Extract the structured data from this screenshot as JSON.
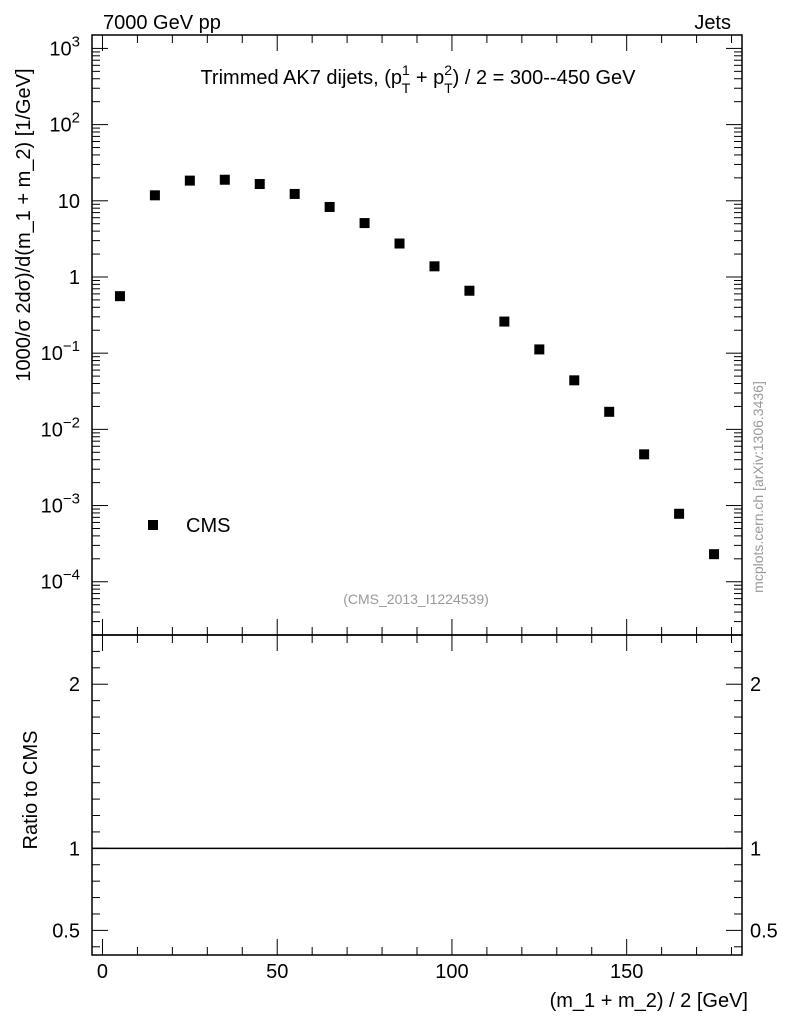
{
  "header": {
    "left": "7000 GeV pp",
    "right": "Jets"
  },
  "side_label": "mcplots.cern.ch [arXiv:1306.3436]",
  "analysis_label": "(CMS_2013_I1224539)",
  "chart_data": [
    {
      "type": "scatter",
      "title_parts": {
        "prefix": "Trimmed AK7 dijets, (p",
        "sup1": "1",
        "sub1": "T",
        "mid": " + p",
        "sup2": "2",
        "sub2": "T",
        "suffix": ") / 2 = 300--450 GeV"
      },
      "ylabel": "1000/σ  2dσ)/d(m_1 + m_2) [1/GeV]",
      "yscale": "log",
      "ylim": [
        2e-05,
        1500
      ],
      "xlim": [
        -3,
        183
      ],
      "y_ticks": [
        {
          "value": 1000,
          "base": "10",
          "exp": "3"
        },
        {
          "value": 100,
          "base": "10",
          "exp": "2"
        },
        {
          "value": 10,
          "base": "10",
          "exp": ""
        },
        {
          "value": 1,
          "base": "1",
          "exp": ""
        },
        {
          "value": 0.1,
          "base": "10",
          "exp": "−1"
        },
        {
          "value": 0.01,
          "base": "10",
          "exp": "−2"
        },
        {
          "value": 0.001,
          "base": "10",
          "exp": "−3"
        },
        {
          "value": 0.0001,
          "base": "10",
          "exp": "−4"
        }
      ],
      "series": [
        {
          "name": "CMS",
          "marker": "square",
          "color": "#000000",
          "x": [
            5,
            15,
            25,
            35,
            45,
            55,
            65,
            75,
            85,
            95,
            105,
            115,
            125,
            135,
            145,
            155,
            165,
            175
          ],
          "y": [
            0.56,
            11.8,
            18.4,
            18.9,
            16.6,
            12.3,
            8.3,
            5.1,
            2.75,
            1.38,
            0.66,
            0.26,
            0.112,
            0.044,
            0.017,
            0.0047,
            0.00078,
            0.00023
          ]
        }
      ],
      "legend_position": "lower-left"
    },
    {
      "type": "line",
      "ylabel": "Ratio to CMS",
      "xlabel": "(m_1 + m_2) / 2 [GeV]",
      "ylim": [
        0.35,
        2.3
      ],
      "xlim": [
        -3,
        183
      ],
      "y_ticks": [
        "0.5",
        "1",
        "2"
      ],
      "x_ticks": [
        "0",
        "50",
        "100",
        "150"
      ],
      "series": [
        {
          "x": [
            -3,
            183
          ],
          "y": [
            1,
            1
          ]
        }
      ]
    }
  ]
}
